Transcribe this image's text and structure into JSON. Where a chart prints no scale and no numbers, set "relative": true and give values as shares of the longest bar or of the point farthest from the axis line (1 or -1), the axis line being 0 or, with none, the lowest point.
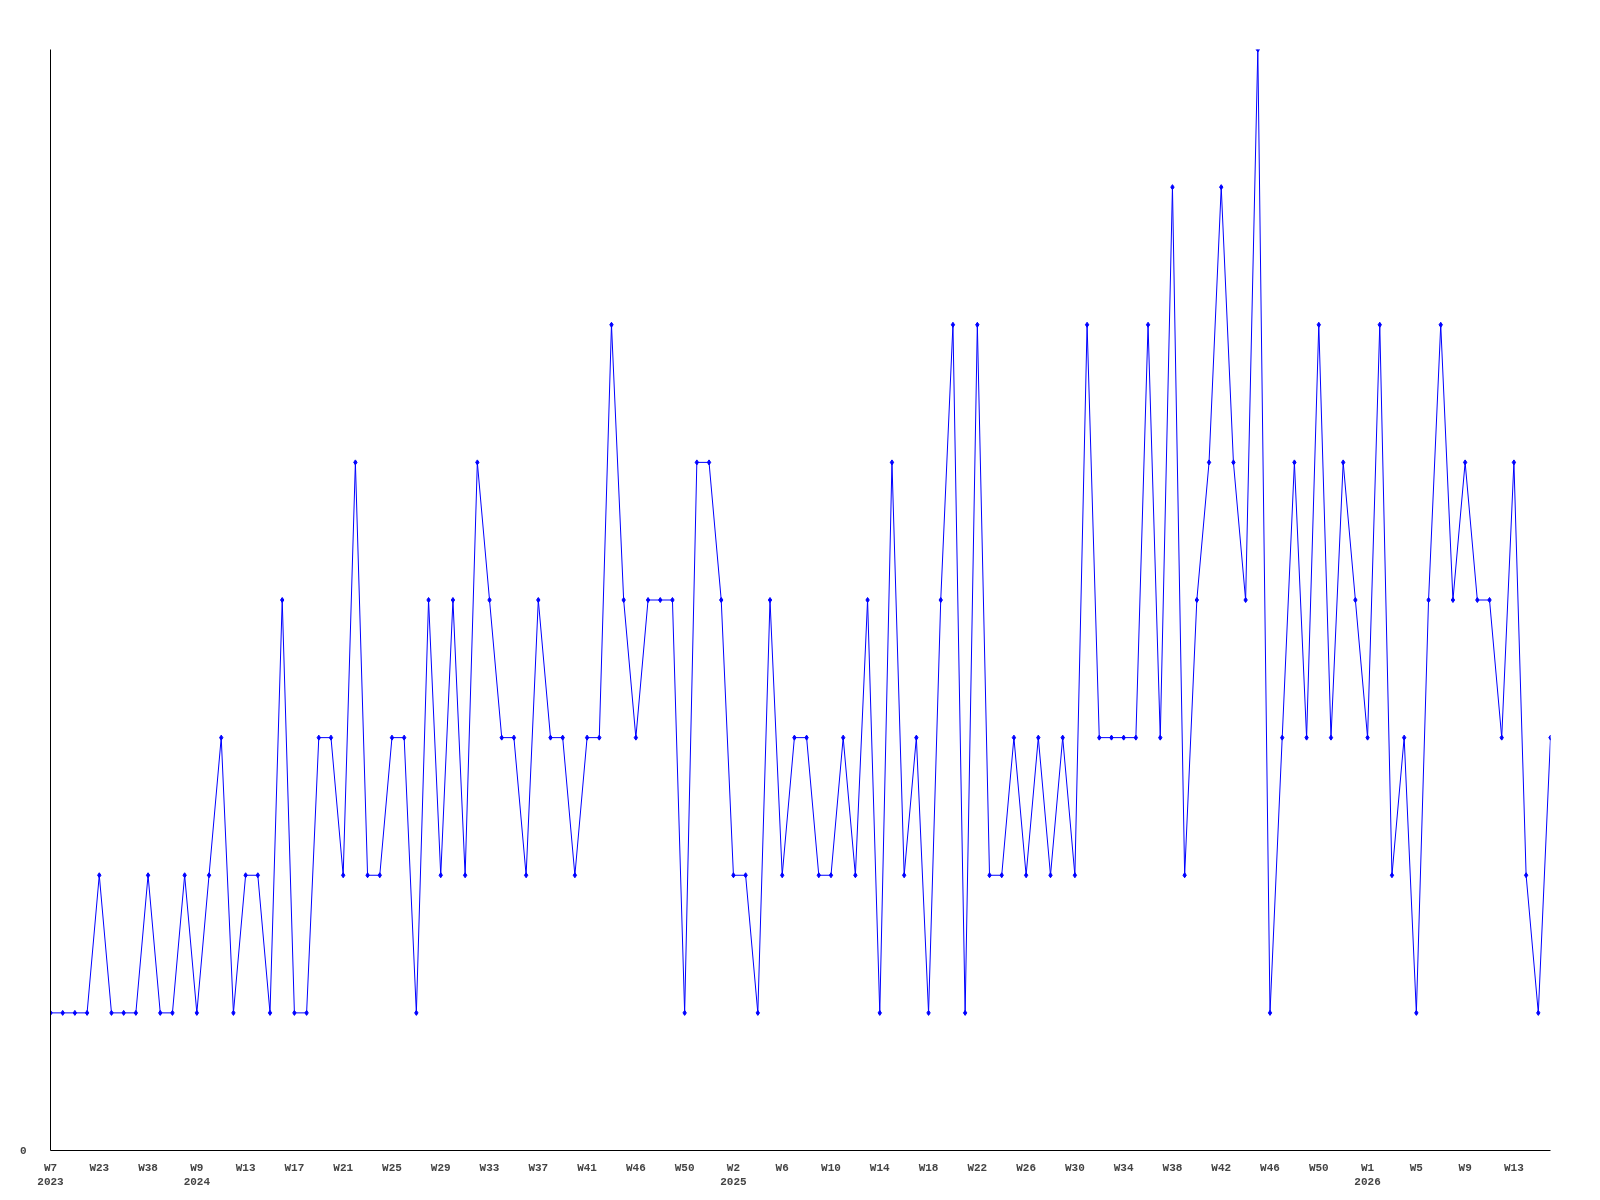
{
  "chart_data": {
    "type": "line",
    "relative": true,
    "marker": "diamond",
    "line_style": "solid",
    "grid": false,
    "categories": [
      "W7\n2023",
      null,
      null,
      null,
      "W23",
      null,
      null,
      null,
      "W38",
      null,
      null,
      null,
      "W9\n2024",
      null,
      null,
      null,
      "W13",
      null,
      null,
      null,
      "W17",
      null,
      null,
      null,
      "W21",
      null,
      null,
      null,
      "W25",
      null,
      null,
      null,
      "W29",
      null,
      null,
      null,
      "W33",
      null,
      null,
      null,
      "W37",
      null,
      null,
      null,
      "W41",
      null,
      null,
      null,
      "W46",
      null,
      null,
      null,
      "W50",
      null,
      null,
      null,
      "W2\n2025",
      null,
      null,
      null,
      "W6",
      null,
      null,
      null,
      "W10",
      null,
      null,
      null,
      "W14",
      null,
      null,
      null,
      "W18",
      null,
      null,
      null,
      "W22",
      null,
      null,
      null,
      "W26",
      null,
      null,
      null,
      "W30",
      null,
      null,
      null,
      "W34",
      null,
      null,
      null,
      "W38",
      null,
      null,
      null,
      "W42",
      null,
      null,
      null,
      "W46",
      null,
      null,
      null,
      "W50",
      null,
      null,
      null,
      "W1\n2026",
      null,
      null,
      null,
      "W5",
      null,
      null,
      null,
      "W9",
      null,
      null,
      null,
      "W13",
      null,
      null,
      null
    ],
    "series": [
      {
        "color": "#0000ff",
        "values": [
          0.125,
          0.125,
          0.125,
          0.125,
          0.25,
          0.125,
          0.125,
          0.125,
          0.25,
          0.125,
          0.125,
          0.25,
          0.125,
          0.25,
          0.375,
          0.125,
          0.25,
          0.25,
          0.125,
          0.5,
          0.125,
          0.125,
          0.375,
          0.375,
          0.25,
          0.625,
          0.25,
          0.25,
          0.375,
          0.375,
          0.125,
          0.5,
          0.25,
          0.5,
          0.25,
          0.625,
          0.5,
          0.375,
          0.375,
          0.25,
          0.5,
          0.375,
          0.375,
          0.25,
          0.375,
          0.375,
          0.75,
          0.5,
          0.375,
          0.5,
          0.5,
          0.5,
          0.125,
          0.625,
          0.625,
          0.5,
          0.25,
          0.25,
          0.125,
          0.5,
          0.25,
          0.375,
          0.375,
          0.25,
          0.25,
          0.375,
          0.25,
          0.5,
          0.125,
          0.625,
          0.25,
          0.375,
          0.125,
          0.5,
          0.75,
          0.125,
          0.75,
          0.25,
          0.25,
          0.375,
          0.25,
          0.375,
          0.25,
          0.375,
          0.25,
          0.75,
          0.375,
          0.375,
          0.375,
          0.375,
          0.75,
          0.375,
          0.875,
          0.25,
          0.5,
          0.625,
          0.875,
          0.625,
          0.5,
          1,
          0.125,
          0.375,
          0.625,
          0.375,
          0.75,
          0.375,
          0.625,
          0.5,
          0.375,
          0.75,
          0.25,
          0.375,
          0.125,
          0.5,
          0.75,
          0.5,
          0.625,
          0.5,
          0.5,
          0.375,
          0.625,
          0.25,
          0.125,
          0.375
        ]
      }
    ],
    "annotations": [
      "0"
    ]
  }
}
